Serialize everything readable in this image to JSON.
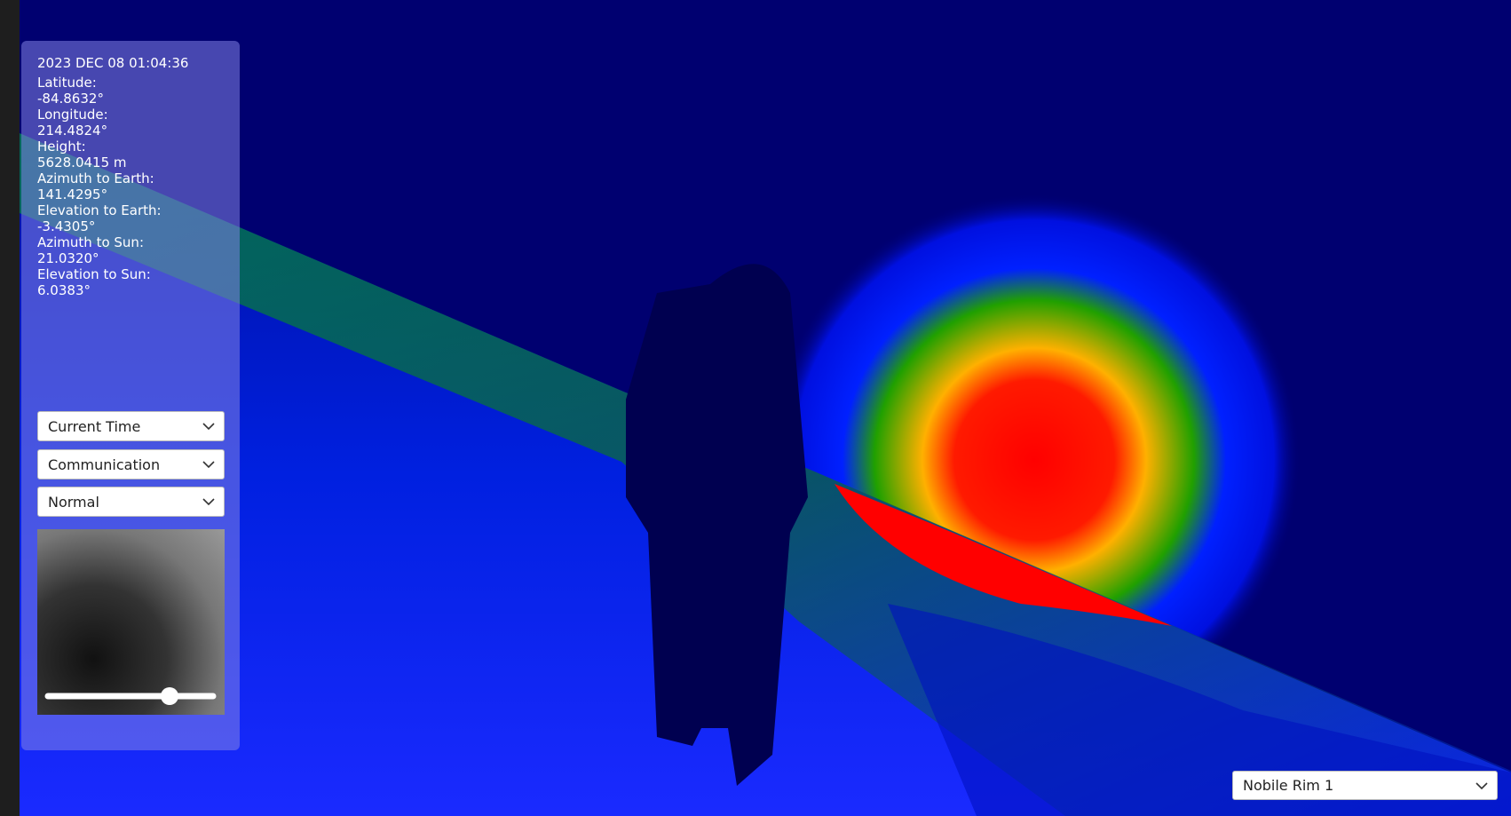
{
  "panel": {
    "datetime": "2023 DEC 08 01:04:36",
    "fields": [
      {
        "label": "Latitude:",
        "value": "-84.8632°"
      },
      {
        "label": "Longitude:",
        "value": "214.4824°"
      },
      {
        "label": "Height:",
        "value": "5628.0415 m"
      },
      {
        "label": "Azimuth to Earth:",
        "value": "141.4295°"
      },
      {
        "label": "Elevation to Earth:",
        "value": "-3.4305°"
      },
      {
        "label": "Azimuth to Sun:",
        "value": "21.0320°"
      },
      {
        "label": "Elevation to Sun:",
        "value": "6.0383°"
      }
    ],
    "dropdowns": [
      "Current Time",
      "Communication",
      "Normal"
    ]
  },
  "location": "Nobile Rim 1"
}
